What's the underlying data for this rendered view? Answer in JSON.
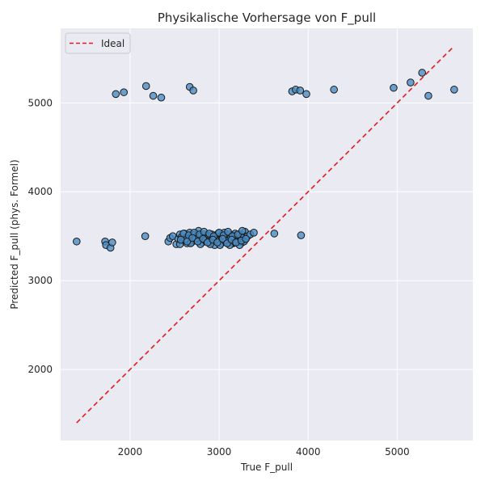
{
  "chart_data": {
    "type": "scatter",
    "title": "Physikalische Vorhersage von F_pull",
    "xlabel": "True F_pull",
    "ylabel": "Predicted F_pull (phys. Formel)",
    "xlim": [
      1220,
      5850
    ],
    "ylim": [
      1200,
      5840
    ],
    "xticks": [
      2000,
      3000,
      4000,
      5000
    ],
    "yticks": [
      2000,
      3000,
      4000,
      5000
    ],
    "grid": true,
    "legend": {
      "position": "top-left",
      "entries": [
        "Ideal"
      ]
    },
    "ideal_line": {
      "name": "Ideal",
      "x": [
        1400,
        5640
      ],
      "y": [
        1400,
        5640
      ],
      "color": "#e41a1c",
      "style": "dashed"
    },
    "series": [
      {
        "marker_color": "#4a8cc4",
        "edge_color": "#1a1a1a",
        "x": [
          1840,
          1930,
          2180,
          2260,
          2350,
          2670,
          2710,
          3820,
          3860,
          3910,
          3980,
          4290,
          4960,
          5150,
          5280,
          5350,
          5640,
          1400,
          1720,
          1730,
          1780,
          1800,
          2170,
          3620,
          3920,
          2430,
          2450,
          2480,
          2520,
          2540,
          2560,
          2580,
          2600,
          2610,
          2620,
          2640,
          2650,
          2660,
          2670,
          2680,
          2690,
          2700,
          2710,
          2720,
          2730,
          2740,
          2750,
          2760,
          2770,
          2780,
          2790,
          2800,
          2810,
          2820,
          2830,
          2840,
          2850,
          2860,
          2870,
          2880,
          2890,
          2900,
          2910,
          2920,
          2930,
          2940,
          2950,
          2960,
          2970,
          2980,
          2990,
          3000,
          3010,
          3020,
          3030,
          3040,
          3050,
          3060,
          3070,
          3080,
          3090,
          3100,
          3110,
          3120,
          3130,
          3140,
          3150,
          3160,
          3170,
          3180,
          3190,
          3200,
          3210,
          3220,
          3230,
          3240,
          3250,
          3260,
          3270,
          3280,
          3290,
          3300,
          3320,
          3350,
          3390,
          2560,
          2620,
          2680,
          2740,
          2790,
          2850,
          2900,
          2960,
          3010,
          3070,
          3120,
          3180,
          3230,
          3280,
          2600,
          2660,
          2720,
          2780,
          2830,
          2890,
          2940,
          3000,
          3050,
          3100,
          3150,
          3210,
          3260,
          2570,
          2640,
          2700,
          2760,
          2820,
          2870,
          2930,
          2980,
          3040,
          3090,
          3140,
          3190,
          3250,
          3300
        ],
        "y": [
          5100,
          5120,
          5190,
          5080,
          5060,
          5180,
          5140,
          5130,
          5150,
          5140,
          5100,
          5150,
          5170,
          5230,
          5340,
          5080,
          5150,
          3440,
          3440,
          3400,
          3370,
          3430,
          3500,
          3530,
          3510,
          3440,
          3480,
          3500,
          3410,
          3470,
          3520,
          3490,
          3450,
          3530,
          3480,
          3420,
          3500,
          3460,
          3540,
          3490,
          3430,
          3510,
          3470,
          3450,
          3520,
          3480,
          3500,
          3440,
          3560,
          3490,
          3460,
          3510,
          3430,
          3480,
          3520,
          3450,
          3490,
          3470,
          3510,
          3440,
          3500,
          3460,
          3430,
          3520,
          3480,
          3450,
          3400,
          3500,
          3470,
          3440,
          3530,
          3490,
          3460,
          3420,
          3510,
          3480,
          3450,
          3540,
          3490,
          3430,
          3470,
          3500,
          3520,
          3440,
          3480,
          3460,
          3510,
          3420,
          3490,
          3530,
          3450,
          3470,
          3500,
          3440,
          3520,
          3480,
          3460,
          3430,
          3510,
          3490,
          3550,
          3470,
          3500,
          3520,
          3540,
          3410,
          3470,
          3420,
          3480,
          3410,
          3450,
          3410,
          3460,
          3400,
          3450,
          3400,
          3430,
          3400,
          3440,
          3530,
          3510,
          3540,
          3520,
          3550,
          3530,
          3500,
          3540,
          3510,
          3550,
          3500,
          3520,
          3560,
          3460,
          3440,
          3480,
          3440,
          3470,
          3430,
          3460,
          3430,
          3470,
          3420,
          3460,
          3430,
          3450,
          3470
        ]
      }
    ]
  }
}
